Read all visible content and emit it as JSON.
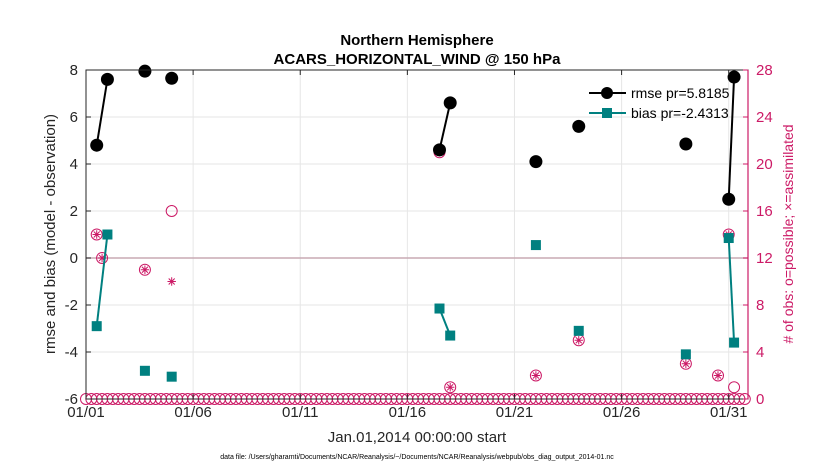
{
  "chart_data": {
    "type": "line",
    "title": "Northern Hemisphere",
    "subtitle": "ACARS_HORIZONTAL_WIND @ 150 hPa",
    "xlabel": "Jan.01,2014 00:00:00 start",
    "ylabel": "rmse and bias (model - observation)",
    "y2label": "# of obs: o=possible; ×=assimilated",
    "footnote": "data file: /Users/gharamti/Documents/NCAR/Reanalysis/~/Documents/NCAR/Reanalysis/webpub/obs_diag_output_2014-01.nc",
    "xlim": [
      1,
      31.9
    ],
    "ylim": [
      -6,
      8
    ],
    "y2lim": [
      0,
      28
    ],
    "x_ticks": [
      1,
      6,
      11,
      16,
      21,
      26,
      31
    ],
    "x_tick_labels": [
      "01/01",
      "01/06",
      "01/11",
      "01/16",
      "01/21",
      "01/26",
      "01/31"
    ],
    "y_ticks": [
      -6,
      -4,
      -2,
      0,
      2,
      4,
      6,
      8
    ],
    "y2_ticks": [
      0,
      4,
      8,
      12,
      16,
      20,
      24,
      28
    ],
    "grid": true,
    "legend_location": "top-right",
    "colors": {
      "rmse": "#000000",
      "bias": "#008080",
      "obs": "#cc1a66",
      "zero_line": "#c8aab4",
      "grid": "#e6e6e6"
    },
    "series": [
      {
        "name": "rmse",
        "legend": "rmse pr=5.8185",
        "marker": "circle",
        "points": [
          [
            1.5,
            4.8
          ],
          [
            2.0,
            7.6
          ],
          null,
          [
            3.75,
            7.95
          ],
          null,
          [
            5.0,
            7.65
          ],
          null,
          [
            17.5,
            4.6
          ],
          [
            18.0,
            6.6
          ],
          null,
          [
            22.0,
            4.1
          ],
          null,
          [
            24.0,
            5.6
          ],
          null,
          [
            29.0,
            4.85
          ],
          null,
          [
            31.0,
            2.5
          ],
          [
            31.25,
            7.7
          ]
        ]
      },
      {
        "name": "bias",
        "legend": "bias pr=-2.4313",
        "marker": "square",
        "points": [
          [
            1.5,
            -2.9
          ],
          [
            2.0,
            1.0
          ],
          null,
          [
            3.75,
            -4.8
          ],
          null,
          [
            5.0,
            -5.05
          ],
          null,
          [
            17.5,
            -2.15
          ],
          [
            18.0,
            -3.3
          ],
          null,
          [
            22.0,
            0.55
          ],
          null,
          [
            24.0,
            -3.1
          ],
          null,
          [
            29.0,
            -4.1
          ],
          null,
          [
            31.0,
            0.85
          ],
          [
            31.25,
            -3.6
          ]
        ]
      }
    ],
    "observations": {
      "possible": [
        [
          1.0,
          0
        ],
        [
          1.5,
          14
        ],
        [
          1.75,
          12
        ],
        [
          2.0,
          0
        ],
        [
          2.5,
          0
        ],
        [
          3.0,
          0
        ],
        [
          3.25,
          0
        ],
        [
          3.75,
          11
        ],
        [
          4.25,
          0
        ],
        [
          4.5,
          0
        ],
        [
          5.0,
          16
        ],
        [
          5.5,
          0
        ],
        [
          17.5,
          21
        ],
        [
          18.0,
          1
        ],
        [
          18.25,
          0
        ],
        [
          22.0,
          2
        ],
        [
          22.5,
          0
        ],
        [
          24.0,
          5
        ],
        [
          25.0,
          0
        ],
        [
          29.0,
          3
        ],
        [
          30.5,
          2
        ],
        [
          31.0,
          14
        ],
        [
          31.25,
          1
        ],
        [
          31.5,
          0
        ],
        [
          31.75,
          0
        ]
      ],
      "assimilated": [
        [
          1.5,
          14
        ],
        [
          1.75,
          12
        ],
        [
          3.75,
          11
        ],
        [
          5.0,
          10
        ],
        [
          17.5,
          21
        ],
        [
          18.0,
          1
        ],
        [
          22.0,
          2
        ],
        [
          24.0,
          5
        ],
        [
          29.0,
          3
        ],
        [
          30.5,
          2
        ],
        [
          31.0,
          14
        ]
      ],
      "zero_count_times": {
        "start": 1.0,
        "end": 31.75,
        "step": 0.25
      }
    }
  }
}
